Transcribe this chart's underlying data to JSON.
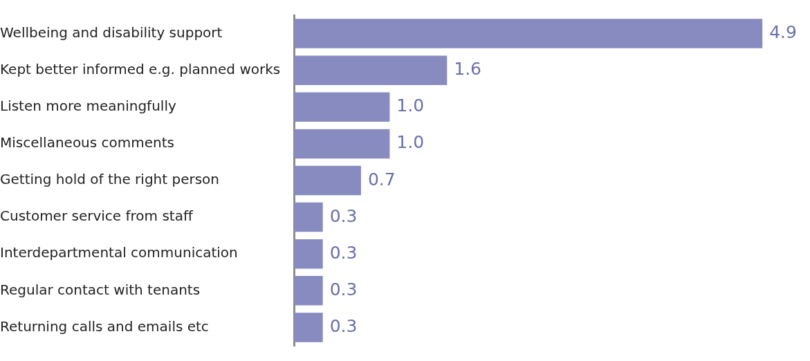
{
  "chart_data": {
    "type": "bar",
    "orientation": "horizontal",
    "categories": [
      "Wellbeing and disability support",
      "Kept better informed e.g. planned works",
      "Listen more meaningfully",
      "Miscellaneous comments",
      "Getting hold of the right person",
      "Customer service from staff",
      "Interdepartmental communication",
      "Regular contact with tenants",
      "Returning calls and emails etc"
    ],
    "values": [
      4.9,
      1.6,
      1.0,
      1.0,
      0.7,
      0.3,
      0.3,
      0.3,
      0.3
    ],
    "value_labels": [
      "4.9",
      "1.6",
      "1.0",
      "1.0",
      "0.7",
      "0.3",
      "0.3",
      "0.3",
      "0.3"
    ],
    "color": "#878bc0",
    "grid": false,
    "legend": false,
    "tick_labels": "y"
  }
}
